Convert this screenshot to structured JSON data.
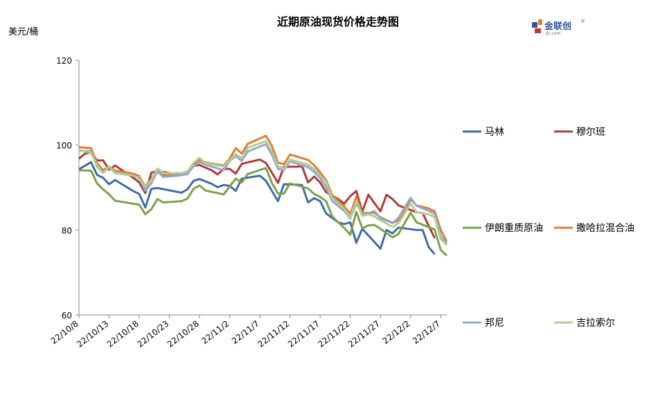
{
  "title": "近期原油现货价格走势图",
  "unit_label": "美元/桶",
  "logo": {
    "name": "金联创",
    "sub": "jlc.com",
    "registered": "®"
  },
  "chart_data": {
    "type": "line",
    "title": "近期原油现货价格走势图",
    "ylabel": "美元/桶",
    "xlabel": "",
    "ylim": [
      60,
      120
    ],
    "yticks": [
      60,
      80,
      100,
      120
    ],
    "xticks": [
      "22/10/8",
      "22/10/13",
      "22/10/18",
      "22/10/23",
      "22/10/28",
      "22/11/2",
      "22/11/7",
      "22/11/12",
      "22/11/17",
      "22/11/22",
      "22/11/27",
      "22/12/2",
      "22/12/7"
    ],
    "x_start": "22/10/8",
    "x_end": "22/12/8",
    "legend_position": "right",
    "grid": false,
    "series": [
      {
        "name": "马林",
        "color": "#3E6CA8",
        "values": [
          [
            0,
            94.3
          ],
          [
            2,
            96
          ],
          [
            3,
            93
          ],
          [
            4,
            92.3
          ],
          [
            5,
            90.8
          ],
          [
            6,
            91.8
          ],
          [
            7,
            90.9
          ],
          [
            9,
            89.2
          ],
          [
            10,
            88.5
          ],
          [
            11,
            85.3
          ],
          [
            12,
            89.7
          ],
          [
            13,
            89.9
          ],
          [
            17,
            88.8
          ],
          [
            18,
            89.6
          ],
          [
            19,
            91.6
          ],
          [
            20,
            92
          ],
          [
            22,
            90.9
          ],
          [
            23,
            90.1
          ],
          [
            24,
            90.6
          ],
          [
            25,
            90.4
          ],
          [
            26,
            89.2
          ],
          [
            27,
            92.1
          ],
          [
            30,
            92.8
          ],
          [
            31,
            91.6
          ],
          [
            32,
            89.2
          ],
          [
            33,
            86.8
          ],
          [
            34,
            90.8
          ],
          [
            36,
            90.7
          ],
          [
            37,
            90.6
          ],
          [
            38,
            86.5
          ],
          [
            39,
            87.5
          ],
          [
            40,
            86.8
          ],
          [
            41,
            83.9
          ],
          [
            43,
            81.8
          ],
          [
            44,
            81.4
          ],
          [
            45,
            81.8
          ],
          [
            46,
            77
          ],
          [
            47,
            80.3
          ],
          [
            50,
            75.6
          ],
          [
            51,
            80
          ],
          [
            52,
            79.2
          ],
          [
            53,
            80.6
          ],
          [
            56,
            80
          ],
          [
            57,
            80
          ],
          [
            58,
            76
          ],
          [
            59,
            74.3
          ]
        ]
      },
      {
        "name": "穆尔班",
        "color": "#B03A38",
        "values": [
          [
            0,
            96.8
          ],
          [
            1,
            98
          ],
          [
            2,
            98.3
          ],
          [
            3,
            96.4
          ],
          [
            4,
            96.4
          ],
          [
            5,
            94.2
          ],
          [
            6,
            95.2
          ],
          [
            9,
            92.3
          ],
          [
            10,
            91.2
          ],
          [
            11,
            88.7
          ],
          [
            12,
            93.5
          ],
          [
            13,
            93.9
          ],
          [
            17,
            93
          ],
          [
            18,
            93.2
          ],
          [
            19,
            95.1
          ],
          [
            20,
            95.3
          ],
          [
            22,
            94.1
          ],
          [
            23,
            93.1
          ],
          [
            24,
            94.4
          ],
          [
            25,
            94.4
          ],
          [
            26,
            93.3
          ],
          [
            27,
            95.6
          ],
          [
            30,
            96.6
          ],
          [
            31,
            95.8
          ],
          [
            32,
            93.5
          ],
          [
            33,
            91.1
          ],
          [
            34,
            94.9
          ],
          [
            36,
            94.9
          ],
          [
            37,
            95
          ],
          [
            38,
            91.2
          ],
          [
            39,
            92.6
          ],
          [
            40,
            91.2
          ],
          [
            41,
            88.9
          ],
          [
            43,
            87.3
          ],
          [
            44,
            86.2
          ],
          [
            45,
            88
          ],
          [
            46,
            89.2
          ],
          [
            47,
            84.3
          ],
          [
            48,
            88.3
          ],
          [
            50,
            84.4
          ],
          [
            51,
            88.3
          ],
          [
            52,
            87.3
          ],
          [
            53,
            85.8
          ],
          [
            56,
            84.2
          ],
          [
            57,
            84
          ],
          [
            58,
            81
          ],
          [
            59,
            78.1
          ]
        ]
      },
      {
        "name": "伊朗重质原油",
        "color": "#7DA146",
        "values": [
          [
            0,
            94.1
          ],
          [
            2,
            94
          ],
          [
            3,
            91
          ],
          [
            4,
            89.6
          ],
          [
            5,
            88.4
          ],
          [
            6,
            86.9
          ],
          [
            9,
            86.2
          ],
          [
            10,
            86
          ],
          [
            11,
            83.7
          ],
          [
            12,
            84.9
          ],
          [
            13,
            87.3
          ],
          [
            14,
            86.5
          ],
          [
            17,
            86.8
          ],
          [
            18,
            87.4
          ],
          [
            19,
            89.7
          ],
          [
            20,
            90.5
          ],
          [
            21,
            89.3
          ],
          [
            24,
            88.4
          ],
          [
            25,
            90.3
          ],
          [
            26,
            92.1
          ],
          [
            27,
            91.2
          ],
          [
            28,
            93.2
          ],
          [
            31,
            94.6
          ],
          [
            32,
            91.1
          ],
          [
            33,
            88.6
          ],
          [
            34,
            88.6
          ],
          [
            35,
            91
          ],
          [
            38,
            89.8
          ],
          [
            39,
            88.5
          ],
          [
            40,
            87.8
          ],
          [
            41,
            86.8
          ],
          [
            42,
            83.2
          ],
          [
            44,
            80.5
          ],
          [
            45,
            78.9
          ],
          [
            46,
            84.3
          ],
          [
            47,
            80.4
          ],
          [
            48,
            81.1
          ],
          [
            49,
            81.2
          ],
          [
            50,
            80.3
          ],
          [
            52,
            78.3
          ],
          [
            53,
            79.1
          ],
          [
            55,
            84.1
          ],
          [
            56,
            81.8
          ],
          [
            58,
            80.7
          ],
          [
            59,
            80.1
          ],
          [
            60,
            75.3
          ],
          [
            61,
            74
          ]
        ]
      },
      {
        "name": "撒哈拉混合油",
        "color": "#E07D35",
        "values": [
          [
            0,
            99.5
          ],
          [
            2,
            99.3
          ],
          [
            3,
            95.8
          ],
          [
            4,
            94.1
          ],
          [
            5,
            95
          ],
          [
            6,
            94
          ],
          [
            9,
            93.3
          ],
          [
            10,
            92.7
          ],
          [
            11,
            90.3
          ],
          [
            12,
            92.1
          ],
          [
            13,
            94.2
          ],
          [
            14,
            92.9
          ],
          [
            17,
            93.2
          ],
          [
            18,
            93.6
          ],
          [
            19,
            95.5
          ],
          [
            20,
            96.5
          ],
          [
            21,
            95.9
          ],
          [
            24,
            95.2
          ],
          [
            25,
            96.8
          ],
          [
            26,
            99.3
          ],
          [
            27,
            98
          ],
          [
            28,
            100.3
          ],
          [
            31,
            102.2
          ],
          [
            32,
            99.8
          ],
          [
            33,
            95.9
          ],
          [
            34,
            95.5
          ],
          [
            35,
            97.8
          ],
          [
            38,
            96.5
          ],
          [
            39,
            95.3
          ],
          [
            40,
            93.6
          ],
          [
            41,
            91.7
          ],
          [
            42,
            88.2
          ],
          [
            44,
            85.6
          ],
          [
            45,
            83.8
          ],
          [
            46,
            87.9
          ],
          [
            47,
            83.9
          ],
          [
            48,
            84.1
          ],
          [
            49,
            84
          ],
          [
            50,
            83
          ],
          [
            52,
            81.7
          ],
          [
            53,
            82.2
          ],
          [
            55,
            87.2
          ],
          [
            56,
            85.8
          ],
          [
            58,
            85.1
          ],
          [
            59,
            84.4
          ],
          [
            60,
            80
          ],
          [
            61,
            77.3
          ]
        ]
      },
      {
        "name": "邦尼",
        "color": "#8FA9D4",
        "values": [
          [
            0,
            98.7
          ],
          [
            2,
            98.6
          ],
          [
            3,
            94.9
          ],
          [
            4,
            93.5
          ],
          [
            5,
            94.8
          ],
          [
            6,
            93.4
          ],
          [
            9,
            92.8
          ],
          [
            10,
            92.1
          ],
          [
            11,
            89.3
          ],
          [
            12,
            91
          ],
          [
            13,
            93.8
          ],
          [
            14,
            92.5
          ],
          [
            17,
            92.9
          ],
          [
            18,
            93.3
          ],
          [
            19,
            95
          ],
          [
            20,
            96
          ],
          [
            21,
            95.4
          ],
          [
            24,
            94.1
          ],
          [
            25,
            96.3
          ],
          [
            26,
            97.4
          ],
          [
            27,
            96.3
          ],
          [
            28,
            98.5
          ],
          [
            31,
            100.2
          ],
          [
            32,
            97.7
          ],
          [
            33,
            94.4
          ],
          [
            34,
            94.1
          ],
          [
            35,
            96.2
          ],
          [
            38,
            94.8
          ],
          [
            39,
            93.7
          ],
          [
            40,
            92.2
          ],
          [
            41,
            90.2
          ],
          [
            42,
            86.8
          ],
          [
            44,
            84.5
          ],
          [
            45,
            82.7
          ],
          [
            46,
            86.3
          ],
          [
            47,
            83.6
          ],
          [
            48,
            83.9
          ],
          [
            49,
            84.5
          ],
          [
            50,
            82.8
          ],
          [
            52,
            81.6
          ],
          [
            53,
            82.9
          ],
          [
            55,
            87.6
          ],
          [
            56,
            85.7
          ],
          [
            58,
            84.5
          ],
          [
            59,
            83.8
          ],
          [
            60,
            78.6
          ],
          [
            61,
            76.8
          ]
        ]
      },
      {
        "name": "吉拉索尔",
        "color": "#B5CD8E",
        "values": [
          [
            0,
            98.9
          ],
          [
            2,
            98.2
          ],
          [
            3,
            95.3
          ],
          [
            4,
            93.4
          ],
          [
            5,
            95
          ],
          [
            6,
            93.5
          ],
          [
            9,
            92.8
          ],
          [
            10,
            92.3
          ],
          [
            11,
            90.2
          ],
          [
            12,
            91.7
          ],
          [
            13,
            94.5
          ],
          [
            14,
            93.4
          ],
          [
            17,
            93.4
          ],
          [
            18,
            93.8
          ],
          [
            19,
            95.8
          ],
          [
            20,
            97
          ],
          [
            21,
            95.7
          ],
          [
            24,
            95
          ],
          [
            25,
            96.4
          ],
          [
            26,
            97.9
          ],
          [
            27,
            96.9
          ],
          [
            28,
            99.4
          ],
          [
            31,
            100.9
          ],
          [
            32,
            98.5
          ],
          [
            33,
            95.1
          ],
          [
            34,
            94.4
          ],
          [
            35,
            96.6
          ],
          [
            38,
            95.4
          ],
          [
            39,
            94.4
          ],
          [
            40,
            92.8
          ],
          [
            41,
            91.3
          ],
          [
            42,
            87.5
          ],
          [
            44,
            85
          ],
          [
            45,
            82.9
          ],
          [
            46,
            86.9
          ],
          [
            47,
            83.3
          ],
          [
            48,
            83.7
          ],
          [
            49,
            83.2
          ],
          [
            50,
            82.3
          ],
          [
            52,
            80.7
          ],
          [
            53,
            81.6
          ],
          [
            55,
            86.2
          ],
          [
            56,
            84.2
          ],
          [
            58,
            83.7
          ],
          [
            59,
            83
          ],
          [
            60,
            77.9
          ],
          [
            61,
            76.4
          ]
        ]
      }
    ]
  }
}
